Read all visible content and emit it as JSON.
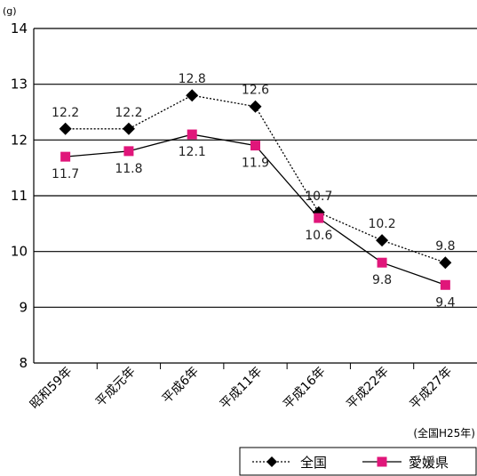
{
  "chart_data": {
    "type": "line",
    "unit_label": "(g)",
    "ylim": [
      8,
      14
    ],
    "yticks": [
      "8",
      "9",
      "10",
      "11",
      "12",
      "13",
      "14"
    ],
    "grid": true,
    "categories": [
      "昭和59年",
      "平成元年",
      "平成6年",
      "平成11年",
      "平成16年",
      "平成22年",
      "平成27年"
    ],
    "series": [
      {
        "name": "全国",
        "values": [
          12.2,
          12.2,
          12.8,
          12.6,
          10.7,
          10.2,
          9.8
        ],
        "labels": [
          "12.2",
          "12.2",
          "12.8",
          "12.6",
          "10.7",
          "10.2",
          "9.8"
        ],
        "color": "#000000",
        "line_style": "dotted",
        "marker": "diamond"
      },
      {
        "name": "愛媛県",
        "values": [
          11.7,
          11.8,
          12.1,
          11.9,
          10.6,
          9.8,
          9.4
        ],
        "labels": [
          "11.7",
          "11.8",
          "12.1",
          "11.9",
          "10.6",
          "9.8",
          "9.4"
        ],
        "color": "#e0167a",
        "line_style": "solid",
        "marker": "square"
      }
    ],
    "note": "(全国H25年)",
    "legend_position": "bottom-right"
  }
}
